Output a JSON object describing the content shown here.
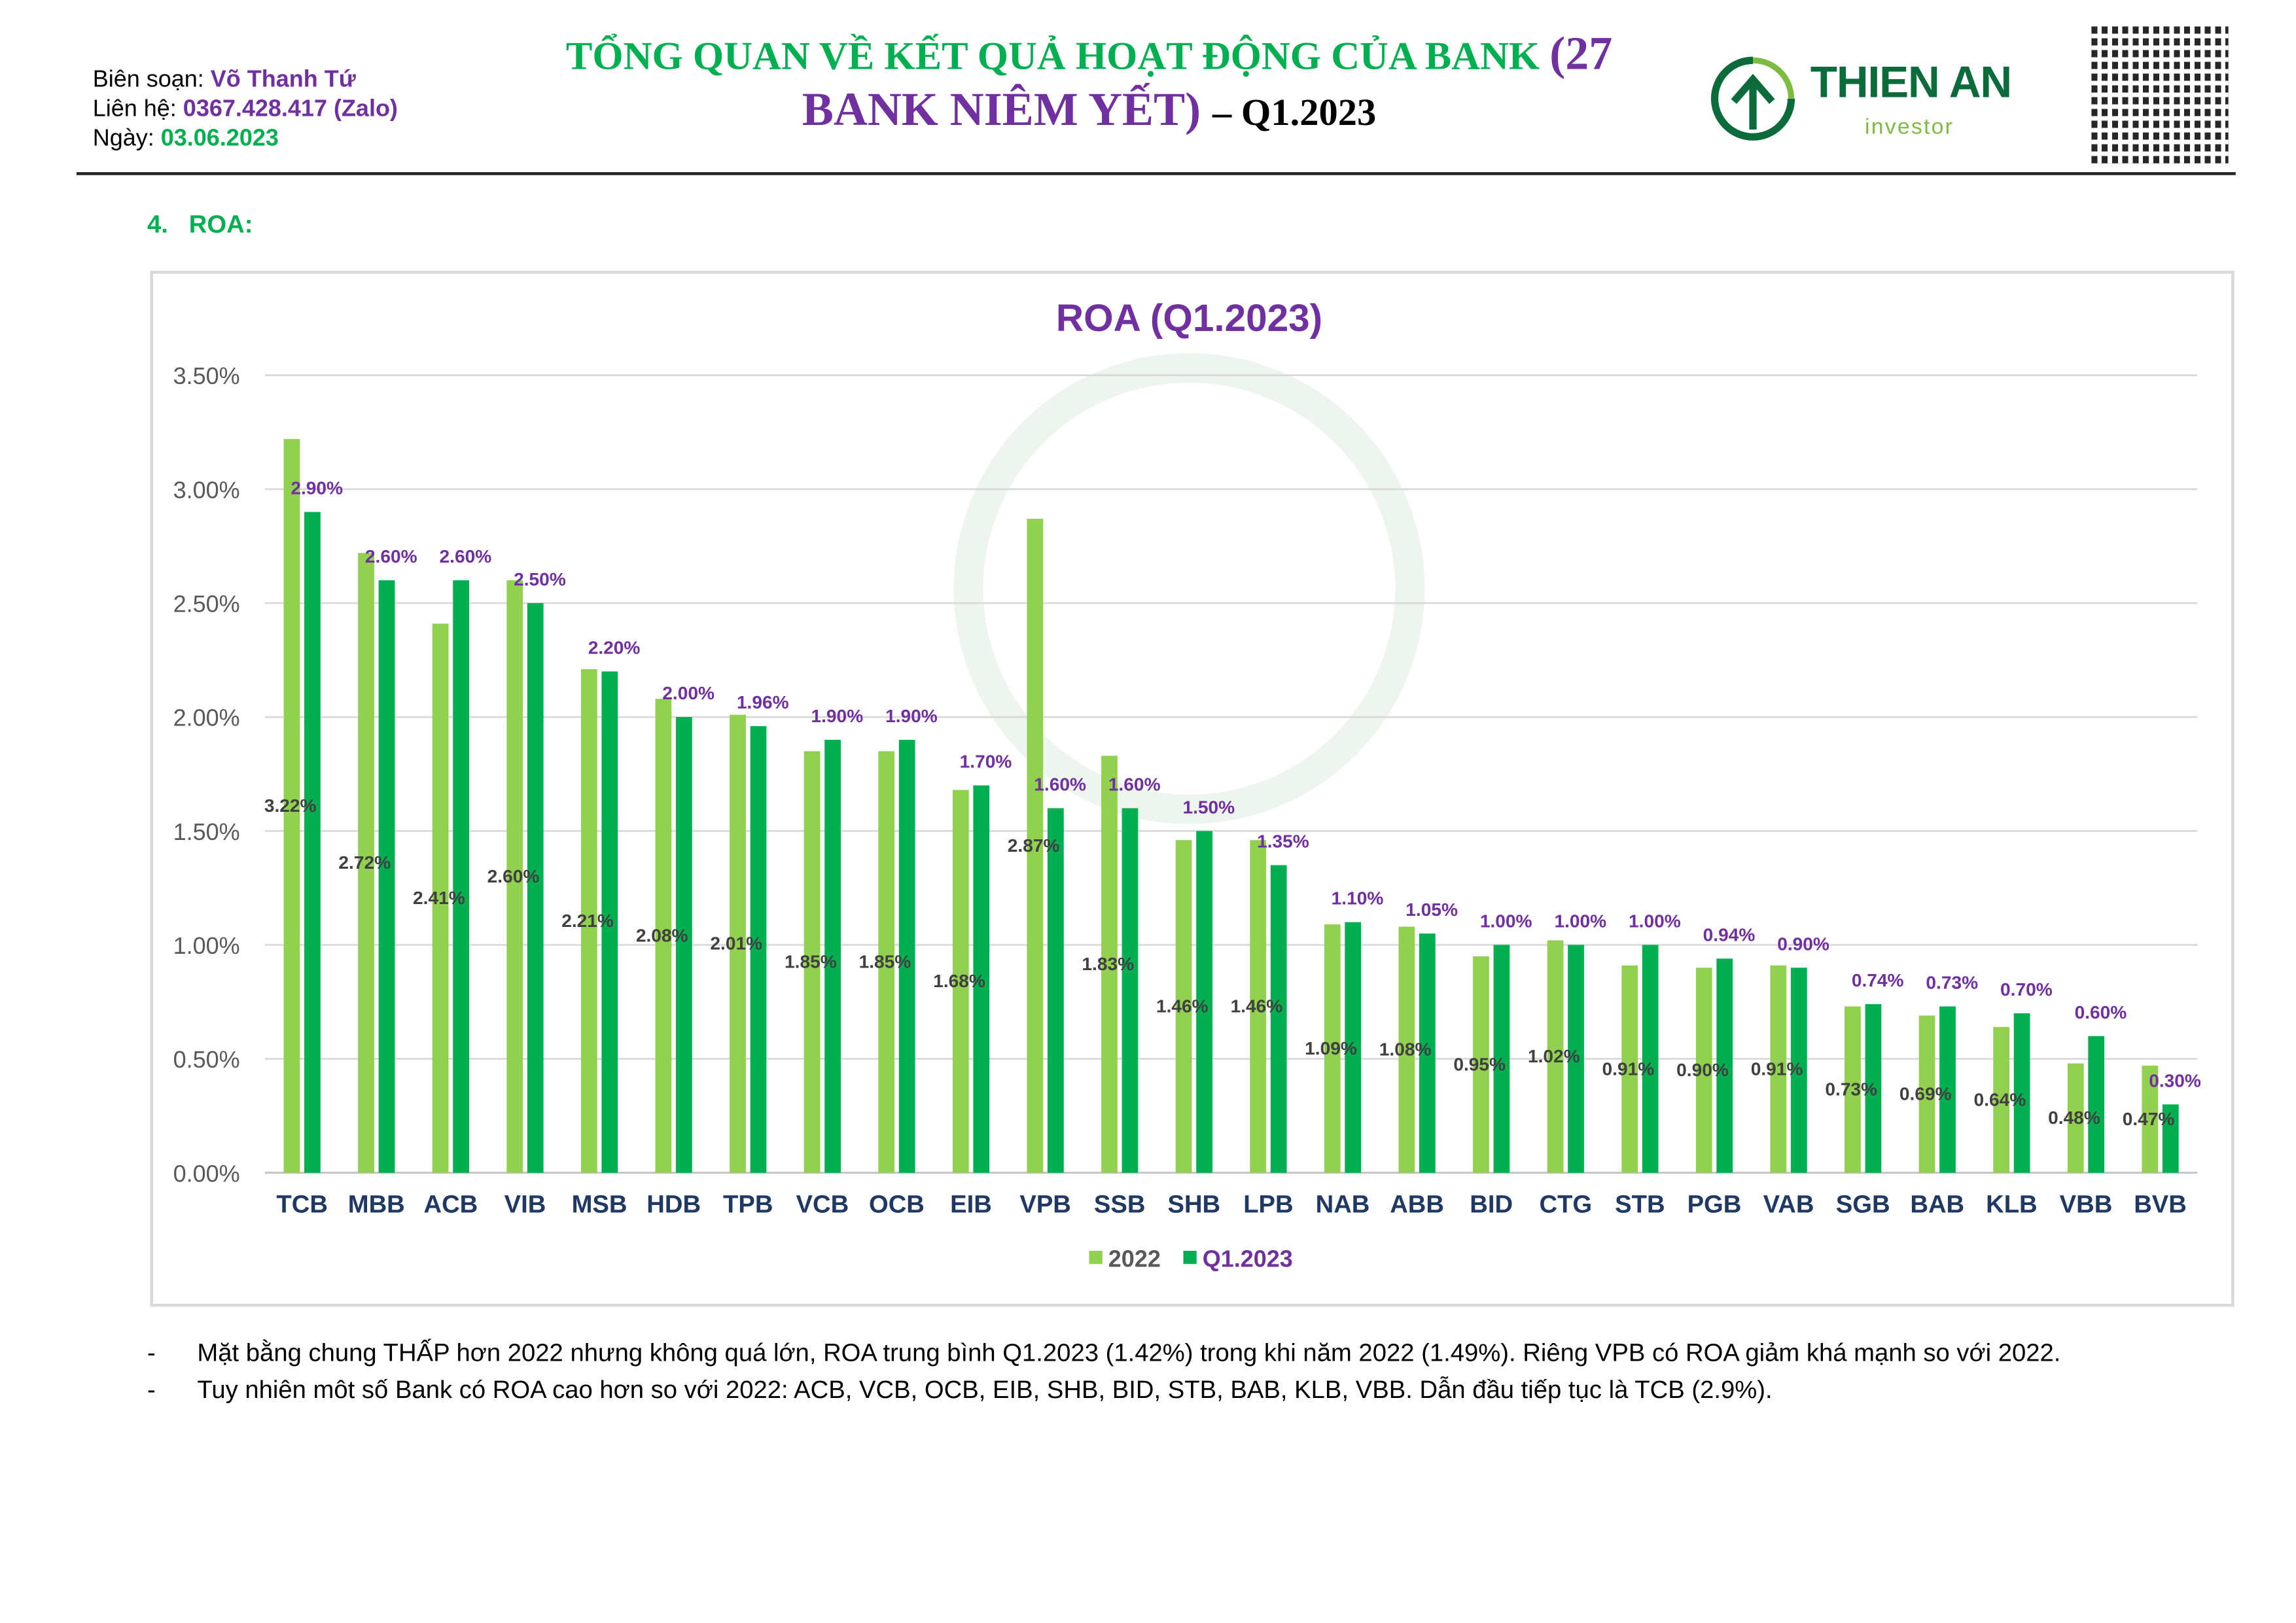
{
  "header": {
    "author_label": "Biên soạn:",
    "author": "Võ Thanh Tứ",
    "contact_label": "Liên hệ:",
    "contact": "0367.428.417 (Zalo)",
    "date_label": "Ngày:",
    "date": "03.06.2023",
    "title_line1": "TỔNG QUAN VỀ KẾT QUẢ HOẠT ĐỘNG CỦA BANK",
    "title_paren": "(27",
    "title_line2": "BANK NIÊM YẾT)",
    "title_suffix": "– Q1.2023",
    "logo_brand": "THIEN AN",
    "logo_sub": "investor"
  },
  "section": {
    "number": "4.",
    "title": "ROA:"
  },
  "chart_data": {
    "type": "bar",
    "title": "ROA (Q1.2023)",
    "xlabel": "",
    "ylabel": "",
    "ylim": [
      0,
      3.5
    ],
    "yticks": [
      "0.00%",
      "0.50%",
      "1.00%",
      "1.50%",
      "2.00%",
      "2.50%",
      "3.00%",
      "3.50%"
    ],
    "grid": true,
    "legend_position": "bottom",
    "categories": [
      "TCB",
      "MBB",
      "ACB",
      "VIB",
      "MSB",
      "HDB",
      "TPB",
      "VCB",
      "OCB",
      "EIB",
      "VPB",
      "SSB",
      "SHB",
      "LPB",
      "NAB",
      "ABB",
      "BID",
      "CTG",
      "STB",
      "PGB",
      "VAB",
      "SGB",
      "BAB",
      "KLB",
      "VBB",
      "BVB"
    ],
    "series": [
      {
        "name": "2022",
        "color": "#92d050",
        "label_color": "#404040",
        "values": [
          3.22,
          2.72,
          2.41,
          2.6,
          2.21,
          2.08,
          2.01,
          1.85,
          1.85,
          1.68,
          2.87,
          1.83,
          1.46,
          1.46,
          1.09,
          1.08,
          0.95,
          1.02,
          0.91,
          0.9,
          0.91,
          0.73,
          0.69,
          0.64,
          0.48,
          0.47
        ]
      },
      {
        "name": "Q1.2023",
        "color": "#00b050",
        "label_color": "#7030a0",
        "values": [
          2.9,
          2.6,
          2.6,
          2.5,
          2.2,
          2.0,
          1.96,
          1.9,
          1.9,
          1.7,
          1.6,
          1.6,
          1.5,
          1.35,
          1.1,
          1.05,
          1.0,
          1.0,
          1.0,
          0.94,
          0.9,
          0.74,
          0.73,
          0.7,
          0.6,
          0.3
        ]
      }
    ]
  },
  "notes": [
    {
      "bullet": "-",
      "text": "Mặt bằng chung THẤP hơn 2022 nhưng không quá lớn, ROA trung bình Q1.2023 (1.42%) trong khi năm 2022 (1.49%). Riêng VPB có ROA giảm khá mạnh so với 2022."
    },
    {
      "bullet": "-",
      "text": "Tuy nhiên môt số Bank có ROA cao hơn so với 2022: ACB, VCB, OCB, EIB, SHB, BID, STB, BAB, KLB, VBB. Dẫn đầu tiếp tục là TCB (2.9%)."
    }
  ]
}
